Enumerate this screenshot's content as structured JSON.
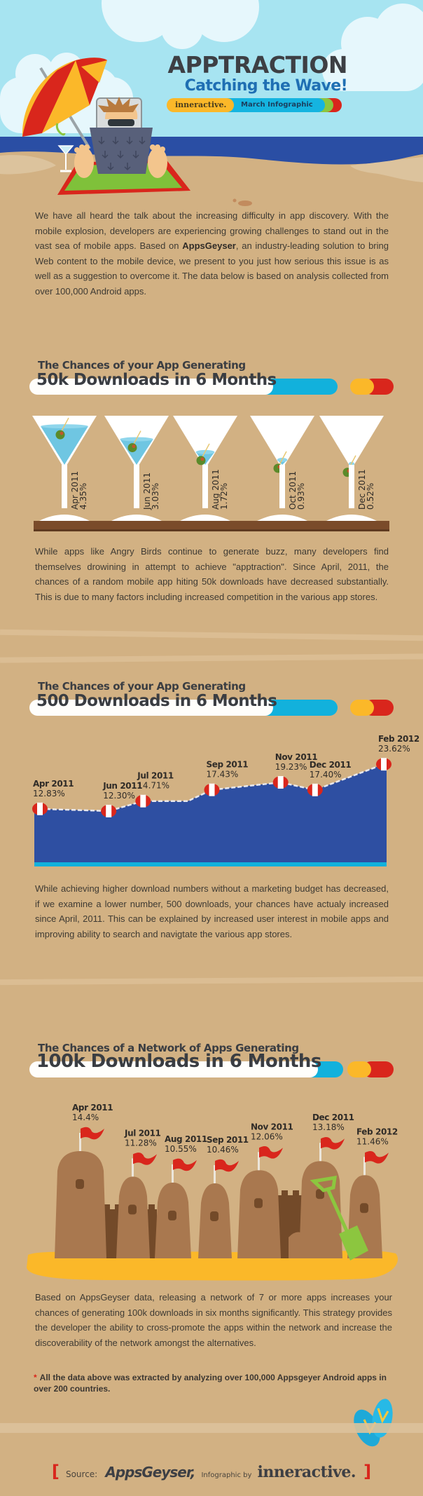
{
  "header": {
    "title": "APPTRACTION",
    "subtitle": "Catching the Wave!",
    "brand_pill": "inneractive.",
    "edition_pill": "March Infographic"
  },
  "intro": {
    "text_before": "We have all heard the talk about the increasing difficulty in app discovery. With the mobile explosion, developers are experiencing growing challenges to stand out in the vast sea of mobile apps. Based on ",
    "bold": "AppsGeyser",
    "text_after": ", an industry-leading solution to bring Web content to the mobile device, we present to you just how serious this issue is as well as a suggestion to overcome it. The data below is based on analysis collected from over 100,000 Android apps."
  },
  "sections": [
    {
      "kicker": "The Chances of your App Generating",
      "title": "50k Downloads in 6 Months",
      "body": "While apps like Angry Birds continue to generate buzz, many developers find themselves drowining in attempt to achieve \"apptraction\". Since April, 2011, the chances of a random mobile app hiting 50k downloads have decreased substantially. This is due to many factors including increased competition in the various app stores."
    },
    {
      "kicker": "The Chances of your App Generating",
      "title": "500 Downloads in 6 Months",
      "body": "While achieving higher download numbers without a marketing budget has decreased, if we examine a lower number, 500 downloads, your chances have actualy increased since April, 2011. This can be explained by increased user interest in mobile apps and improving ability to search and navigtate the various app stores."
    },
    {
      "kicker": "The Chances of  a Network of  Apps Generating",
      "title": "100k Downloads in 6 Months",
      "body": "Based on AppsGeyser data, releasing a network of 7 or more apps increases your chances of generating 100k downloads in six months significantly. This strategy provides the developer the ability to cross-promote the apps within the network and increase the discoverability of the network amongst the alternatives."
    }
  ],
  "footnote": {
    "marker": "*",
    "text": "All the data above was extracted by analyzing over 100,000 Appsgeyer Android apps in over 200 countries."
  },
  "credits": {
    "open_bracket": "[",
    "source_label": "Source:",
    "source_name": "AppsGeyser",
    "separator": ",",
    "by_label": "Infographic by",
    "author": "inneractive.",
    "close_bracket": "]"
  },
  "colors": {
    "sky": "#a7e4f1",
    "sea": "#2a4ea4",
    "sand": "#d2b183",
    "accent_red": "#d9261c",
    "accent_yellow": "#fbb829",
    "accent_blue": "#12b1dc",
    "title_blue": "#1f6fb3",
    "area_fill": "#2e4fa2",
    "castle": "#a9784f",
    "castle_dark": "#734a29"
  },
  "chart_data": [
    {
      "type": "bar",
      "title": "50k Downloads in 6 Months",
      "subtitle": "The Chances of your App Generating",
      "style": "martini-glass fill level",
      "categories": [
        "Apr 2011",
        "Jun 2011",
        "Aug 2011",
        "Oct 2011",
        "Dec 2011"
      ],
      "values": [
        4.35,
        3.03,
        1.72,
        0.93,
        0.52
      ],
      "labels": [
        "4.35%",
        "3.03%",
        "1.72%",
        "0.93%",
        "0.52%"
      ],
      "unit": "%",
      "ylim": [
        0,
        5
      ]
    },
    {
      "type": "area",
      "title": "500 Downloads in 6 Months",
      "subtitle": "The Chances of your App Generating",
      "categories": [
        "Apr 2011",
        "Jun 2011",
        "Jul 2011",
        "Sep 2011",
        "Nov 2011",
        "Dec 2011",
        "Feb 2012"
      ],
      "x_months": [
        0,
        2,
        3,
        5,
        7,
        8,
        10
      ],
      "values": [
        12.83,
        12.3,
        14.71,
        17.43,
        19.23,
        17.4,
        23.62
      ],
      "labels": [
        "12.83%",
        "12.30%",
        "14.71%",
        "17.43%",
        "19.23%",
        "17.40%",
        "23.62%"
      ],
      "unit": "%",
      "ylim": [
        0,
        25
      ]
    },
    {
      "type": "bar",
      "title": "100k Downloads in 6 Months",
      "subtitle": "The Chances of  a Network of  Apps Generating",
      "style": "sandcastle towers with flags",
      "categories": [
        "Apr 2011",
        "Jul 2011",
        "Aug 2011",
        "Sep 2011",
        "Nov 2011",
        "Dec 2011",
        "Feb 2012"
      ],
      "values": [
        14.4,
        11.28,
        10.55,
        10.46,
        12.06,
        13.18,
        11.46
      ],
      "labels": [
        "14.4%",
        "11.28%",
        "10.55%",
        "10.46%",
        "12.06%",
        "13.18%",
        "11.46%"
      ],
      "unit": "%",
      "ylim": [
        0,
        15
      ]
    }
  ]
}
